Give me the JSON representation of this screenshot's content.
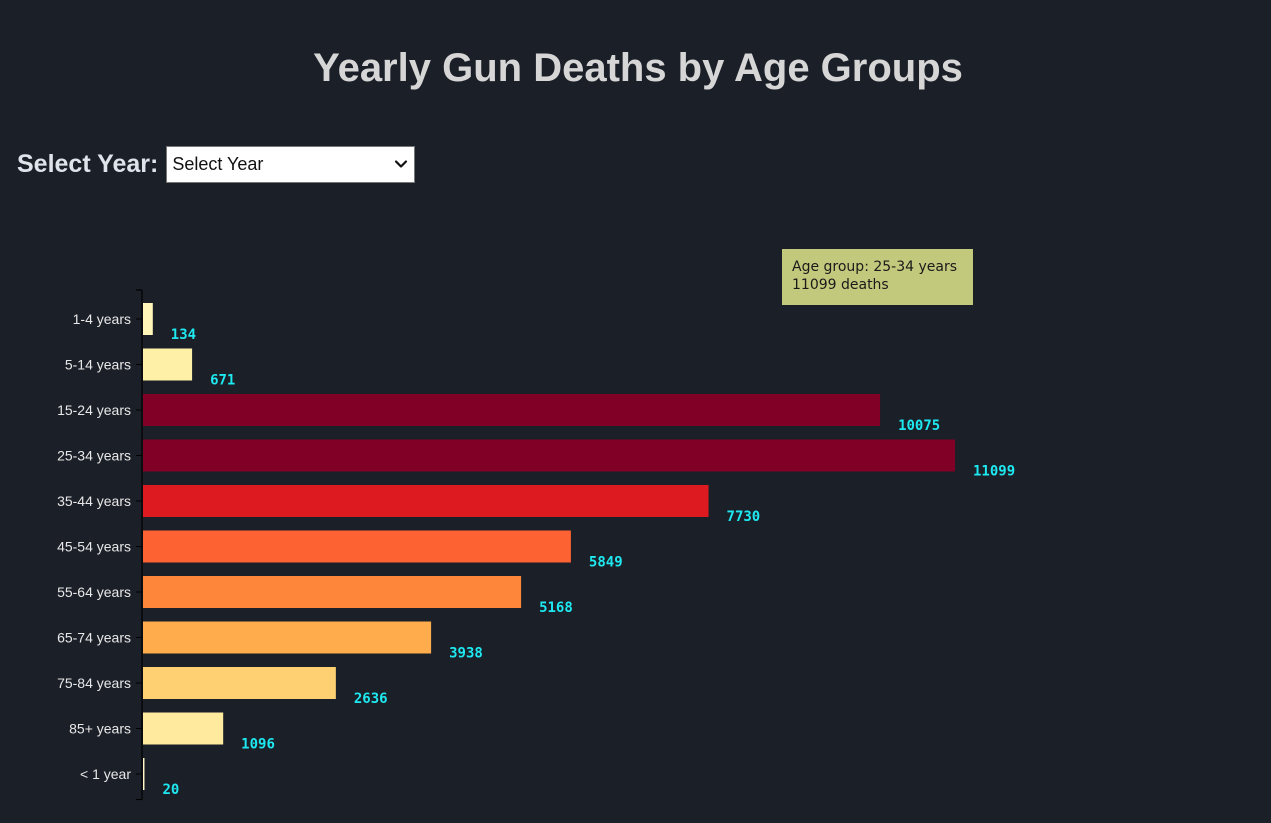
{
  "title": "Yearly Gun Deaths by Age Groups",
  "year_selector": {
    "label": "Select Year:",
    "selected": "Select Year"
  },
  "tooltip": {
    "line1": "Age group: 25-34 years",
    "line2": "11099 deaths"
  },
  "colors": {
    "background": "#1b1f28",
    "value_label": "#1ee8f0",
    "tooltip_bg": "#c3c97c"
  },
  "chart_data": {
    "type": "bar",
    "orientation": "horizontal",
    "title": "Yearly Gun Deaths by Age Groups",
    "categories": [
      "1-4 years",
      "5-14 years",
      "15-24 years",
      "25-34 years",
      "35-44 years",
      "45-54 years",
      "55-64 years",
      "65-74 years",
      "75-84 years",
      "85+ years",
      "< 1 year"
    ],
    "values": [
      134,
      671,
      10075,
      11099,
      7730,
      5849,
      5168,
      3938,
      2636,
      1096,
      20
    ],
    "colors": [
      "#fff6b8",
      "#fff0a8",
      "#800026",
      "#800026",
      "#dc1a20",
      "#fc6232",
      "#fd863a",
      "#feac4c",
      "#fed072",
      "#ffea9e",
      "#fff9c8"
    ],
    "xlim": [
      0,
      11099
    ],
    "xlabel": "",
    "ylabel": "",
    "grid": false,
    "legend": "none"
  }
}
